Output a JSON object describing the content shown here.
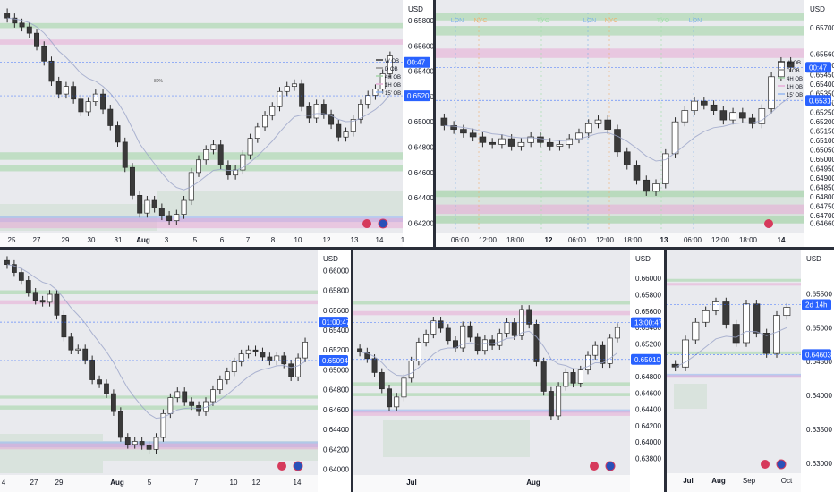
{
  "colors": {
    "bg": "#e9eaee",
    "separator": "#2a2e39",
    "candle_up": "#ffffff",
    "candle_down": "#3a3a3a",
    "wick": "#2a2a2a",
    "price_tag": "#2962ff",
    "ob_green": "#9fd3a3",
    "ob_pink": "#e7a9d6",
    "ob_blue": "#8fb3f0",
    "ema": "#9aa4c8",
    "axis_text": "#131722",
    "session_green": "#9fe0a8",
    "session_orange": "#f0b070",
    "session_blue": "#7fb3e6"
  },
  "panels": [
    {
      "id": "p1",
      "chart_data": {
        "type": "candlestick",
        "currency": "USD",
        "y_ticks": [
          0.642,
          0.644,
          0.646,
          0.648,
          0.65,
          0.652,
          0.654,
          0.656,
          0.658
        ],
        "ylim": [
          0.6414,
          0.6592
        ],
        "x_labels": [
          "25",
          "27",
          "29",
          "30",
          "31",
          "Aug",
          "3",
          "5",
          "6",
          "7",
          "8",
          "10",
          "12",
          "13",
          "14",
          "1"
        ],
        "x_bold": [
          "Aug"
        ],
        "price_tags": [
          {
            "label": "00:47",
            "value": 0.6547
          },
          {
            "label": "0.65206",
            "value": 0.65206
          }
        ],
        "legend": [
          "W OB",
          "D OB",
          "4H OB",
          "1H OB",
          "15' OB"
        ],
        "annotation": "80%",
        "close_path": [
          0.6582,
          0.6578,
          0.6575,
          0.657,
          0.656,
          0.6548,
          0.6532,
          0.6522,
          0.6528,
          0.6518,
          0.6508,
          0.6516,
          0.6522,
          0.651,
          0.6497,
          0.6484,
          0.6464,
          0.6442,
          0.6428,
          0.6438,
          0.6432,
          0.6426,
          0.6422,
          0.6427,
          0.6438,
          0.646,
          0.647,
          0.6478,
          0.6482,
          0.6466,
          0.6458,
          0.6462,
          0.6474,
          0.6487,
          0.6496,
          0.6505,
          0.6512,
          0.6524,
          0.6528,
          0.653,
          0.6512,
          0.6503,
          0.6514,
          0.6506,
          0.6498,
          0.6488,
          0.6492,
          0.6502,
          0.6514,
          0.6521,
          0.6526,
          0.6538,
          0.6552
        ]
      }
    },
    {
      "id": "p2",
      "chart_data": {
        "type": "candlestick",
        "currency": "USD",
        "y_ticks": [
          0.6466,
          0.647,
          0.6475,
          0.648,
          0.6485,
          0.649,
          0.6495,
          0.65,
          0.6505,
          0.651,
          0.6515,
          0.652,
          0.6525,
          0.653,
          0.6535,
          0.654,
          0.6545,
          0.655,
          0.6556,
          0.657
        ],
        "ylim": [
          0.6462,
          0.6582
        ],
        "x_labels": [
          "06:00",
          "12:00",
          "18:00",
          "12",
          "06:00",
          "12:00",
          "18:00",
          "13",
          "06:00",
          "12:00",
          "18:00",
          "14"
        ],
        "x_bold": [
          "12",
          "13",
          "14"
        ],
        "price_tags": [
          {
            "label": "00:47",
            "value": 0.6549
          },
          {
            "label": "0.65314",
            "value": 0.65314
          }
        ],
        "legend": [
          "W OB",
          "D OB",
          "4H OB",
          "1H OB",
          "15' OB"
        ],
        "session_labels": [
          "LON",
          "NYC",
          "TYO",
          "LON",
          "NYC",
          "TYO",
          "LON"
        ],
        "close_path": [
          0.6518,
          0.6516,
          0.6514,
          0.6512,
          0.6509,
          0.6508,
          0.6511,
          0.6507,
          0.6509,
          0.6512,
          0.6509,
          0.6507,
          0.6508,
          0.6511,
          0.6514,
          0.6519,
          0.6521,
          0.6516,
          0.6504,
          0.6497,
          0.6489,
          0.6483,
          0.6487,
          0.6503,
          0.652,
          0.6526,
          0.6531,
          0.6529,
          0.6526,
          0.6521,
          0.6525,
          0.6522,
          0.6519,
          0.6527,
          0.6544,
          0.6552,
          0.6549
        ]
      }
    },
    {
      "id": "p3",
      "chart_data": {
        "type": "candlestick",
        "currency": "USD",
        "y_ticks": [
          0.64,
          0.642,
          0.644,
          0.646,
          0.648,
          0.65,
          0.652,
          0.654,
          0.656,
          0.658,
          0.66
        ],
        "ylim": [
          0.6396,
          0.6612
        ],
        "x_labels": [
          "4",
          "27",
          "29",
          "Aug",
          "5",
          "7",
          "10",
          "12",
          "14"
        ],
        "x_bold": [
          "Aug"
        ],
        "price_tags": [
          {
            "label": "01:00:47",
            "value": 0.6548
          },
          {
            "label": "0.65094",
            "value": 0.65094
          }
        ],
        "close_path": [
          0.6606,
          0.6598,
          0.659,
          0.6578,
          0.657,
          0.6568,
          0.6576,
          0.6555,
          0.6533,
          0.652,
          0.6521,
          0.651,
          0.649,
          0.6486,
          0.6476,
          0.6458,
          0.6432,
          0.6425,
          0.6428,
          0.6424,
          0.642,
          0.6432,
          0.6456,
          0.6472,
          0.6478,
          0.6468,
          0.6464,
          0.6458,
          0.6468,
          0.648,
          0.649,
          0.6498,
          0.6508,
          0.6516,
          0.652,
          0.6518,
          0.6513,
          0.6509,
          0.6514,
          0.6506,
          0.6493,
          0.6512,
          0.6528
        ]
      }
    },
    {
      "id": "p4",
      "chart_data": {
        "type": "candlestick",
        "currency": "USD",
        "y_ticks": [
          0.638,
          0.64,
          0.642,
          0.644,
          0.646,
          0.648,
          0.65,
          0.652,
          0.654,
          0.656,
          0.658,
          0.66
        ],
        "ylim": [
          0.6362,
          0.6622
        ],
        "x_labels": [
          "Jul",
          "Aug"
        ],
        "x_bold": [
          "Jul",
          "Aug"
        ],
        "price_tags": [
          {
            "label": "13:00:47",
            "value": 0.6546
          },
          {
            "label": "0.65010",
            "value": 0.6501
          }
        ],
        "close_path": [
          0.651,
          0.6502,
          0.6485,
          0.6465,
          0.6443,
          0.6455,
          0.6478,
          0.6499,
          0.6522,
          0.6532,
          0.6548,
          0.6539,
          0.6524,
          0.6515,
          0.6542,
          0.6528,
          0.6512,
          0.6525,
          0.6518,
          0.6533,
          0.6546,
          0.653,
          0.6562,
          0.6544,
          0.6498,
          0.6462,
          0.6432,
          0.6468,
          0.6485,
          0.6472,
          0.6488,
          0.6506,
          0.6518,
          0.6496,
          0.6527,
          0.654
        ]
      }
    },
    {
      "id": "p5",
      "chart_data": {
        "type": "candlestick",
        "currency": "USD",
        "y_ticks": [
          0.63,
          0.635,
          0.64,
          0.645,
          0.65,
          0.655
        ],
        "ylim": [
          0.6288,
          0.6602
        ],
        "x_labels": [
          "Jul",
          "Aug",
          "Sep",
          "Oct"
        ],
        "x_bold": [
          "Jul",
          "Aug"
        ],
        "price_tags": [
          {
            "label": "2d 14h",
            "value": 0.6534
          },
          {
            "label": "0.64603",
            "value": 0.64603
          }
        ],
        "close_path": [
          0.6442,
          0.6482,
          0.6508,
          0.6525,
          0.6538,
          0.6505,
          0.6478,
          0.6535,
          0.6492,
          0.6462,
          0.6518,
          0.653
        ]
      }
    }
  ]
}
